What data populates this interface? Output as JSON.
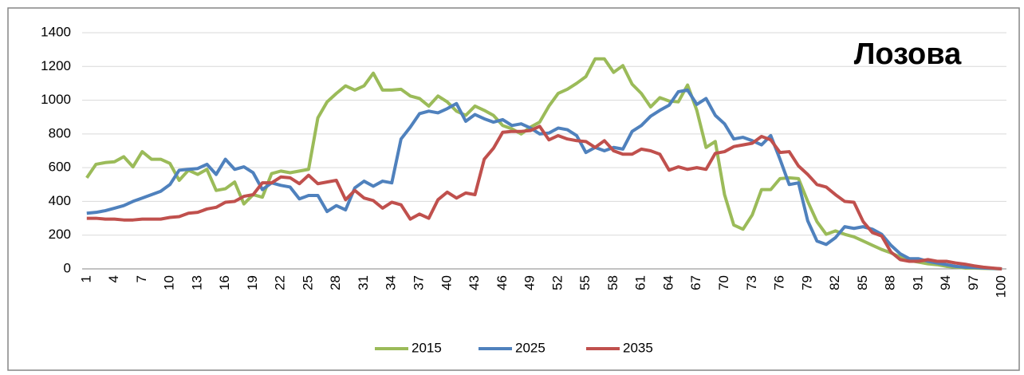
{
  "chart_data": {
    "type": "line",
    "title": "Лозова",
    "categories": [
      1,
      null,
      null,
      4,
      null,
      null,
      7,
      null,
      null,
      10,
      null,
      null,
      13,
      null,
      null,
      16,
      null,
      null,
      19,
      null,
      null,
      22,
      null,
      null,
      25,
      null,
      null,
      28,
      null,
      null,
      31,
      null,
      null,
      34,
      null,
      null,
      37,
      null,
      null,
      40,
      null,
      null,
      43,
      null,
      null,
      46,
      null,
      null,
      49,
      null,
      null,
      52,
      null,
      null,
      55,
      null,
      null,
      58,
      null,
      null,
      61,
      null,
      null,
      64,
      null,
      null,
      67,
      null,
      null,
      70,
      null,
      null,
      73,
      null,
      null,
      76,
      null,
      null,
      79,
      null,
      null,
      82,
      null,
      null,
      85,
      null,
      null,
      88,
      null,
      null,
      91,
      null,
      null,
      94,
      null,
      null,
      97,
      null,
      null,
      100
    ],
    "series": [
      {
        "name": "2015",
        "color": "#9bbb59",
        "values": [
          540,
          620,
          630,
          635,
          665,
          605,
          695,
          650,
          650,
          625,
          525,
          585,
          560,
          590,
          465,
          475,
          515,
          385,
          440,
          425,
          565,
          580,
          570,
          580,
          590,
          895,
          990,
          1040,
          1085,
          1060,
          1085,
          1160,
          1060,
          1060,
          1065,
          1025,
          1010,
          965,
          1025,
          990,
          935,
          910,
          965,
          940,
          910,
          850,
          830,
          800,
          840,
          870,
          965,
          1040,
          1065,
          1100,
          1140,
          1245,
          1245,
          1165,
          1205,
          1095,
          1040,
          960,
          1015,
          995,
          990,
          1090,
          940,
          720,
          755,
          440,
          260,
          235,
          320,
          470,
          470,
          535,
          540,
          535,
          400,
          280,
          205,
          225,
          205,
          190,
          165,
          140,
          115,
          95,
          70,
          50,
          40,
          30,
          25,
          15,
          10,
          5,
          5,
          3,
          2,
          0
        ]
      },
      {
        "name": "2025",
        "color": "#4f81bd",
        "values": [
          330,
          335,
          345,
          360,
          375,
          400,
          420,
          440,
          460,
          500,
          585,
          590,
          595,
          620,
          560,
          650,
          590,
          605,
          570,
          470,
          510,
          495,
          485,
          415,
          435,
          435,
          340,
          375,
          350,
          480,
          520,
          490,
          520,
          510,
          770,
          840,
          920,
          935,
          925,
          950,
          980,
          875,
          915,
          890,
          870,
          885,
          850,
          860,
          835,
          800,
          805,
          835,
          825,
          790,
          690,
          720,
          700,
          720,
          710,
          815,
          850,
          905,
          940,
          970,
          1050,
          1060,
          975,
          1010,
          910,
          860,
          770,
          780,
          760,
          735,
          790,
          650,
          500,
          510,
          285,
          165,
          145,
          185,
          250,
          240,
          250,
          235,
          205,
          140,
          90,
          60,
          60,
          45,
          35,
          25,
          15,
          10,
          8,
          5,
          3,
          0
        ]
      },
      {
        "name": "2035",
        "color": "#c0504d",
        "values": [
          300,
          300,
          295,
          295,
          290,
          290,
          295,
          295,
          295,
          305,
          310,
          330,
          335,
          355,
          365,
          395,
          400,
          430,
          440,
          510,
          510,
          545,
          540,
          505,
          555,
          505,
          515,
          525,
          410,
          465,
          420,
          405,
          360,
          395,
          380,
          295,
          325,
          300,
          410,
          455,
          420,
          450,
          440,
          650,
          715,
          810,
          815,
          815,
          820,
          845,
          765,
          790,
          770,
          760,
          755,
          720,
          760,
          700,
          680,
          680,
          710,
          700,
          680,
          585,
          605,
          590,
          600,
          590,
          685,
          695,
          725,
          735,
          745,
          785,
          765,
          690,
          695,
          610,
          560,
          500,
          485,
          440,
          400,
          395,
          280,
          215,
          195,
          100,
          55,
          45,
          45,
          55,
          45,
          45,
          35,
          28,
          18,
          10,
          5,
          0
        ]
      }
    ],
    "ylim": [
      0,
      1400
    ],
    "yticks": [
      0,
      200,
      400,
      600,
      800,
      1000,
      1200,
      1400
    ],
    "grid": true
  }
}
